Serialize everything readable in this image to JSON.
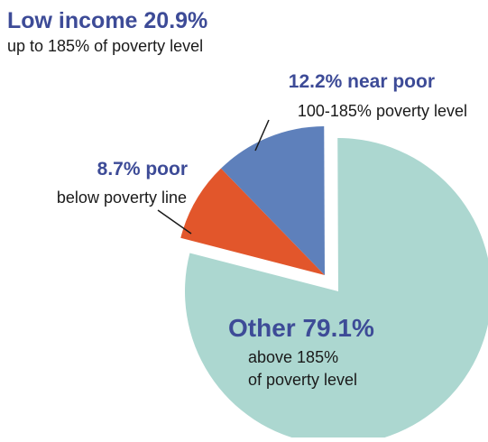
{
  "header": {
    "title": "Low income 20.9%",
    "subtitle": "up to 185% of poverty level"
  },
  "chart_data": {
    "type": "pie",
    "slices": [
      {
        "label": "Other",
        "value": 79.1,
        "value_text": "79.1%",
        "title": "Other 79.1%",
        "description": [
          "above 185%",
          "of poverty level"
        ],
        "color": "#acd7d0",
        "exploded": false
      },
      {
        "label": "poor",
        "value": 8.7,
        "value_text": "8.7%",
        "title": "8.7% poor",
        "description": [
          "below poverty line"
        ],
        "color": "#e2562b",
        "exploded": true
      },
      {
        "label": "near poor",
        "value": 12.2,
        "value_text": "12.2%",
        "title": "12.2% near poor",
        "description": [
          "100-185% poverty level"
        ],
        "color": "#5e80bb",
        "exploded": true
      }
    ]
  },
  "colors": {
    "heading": "#3d4b97",
    "text": "#1a1a1a",
    "leader_line": "#1a1a1a"
  }
}
